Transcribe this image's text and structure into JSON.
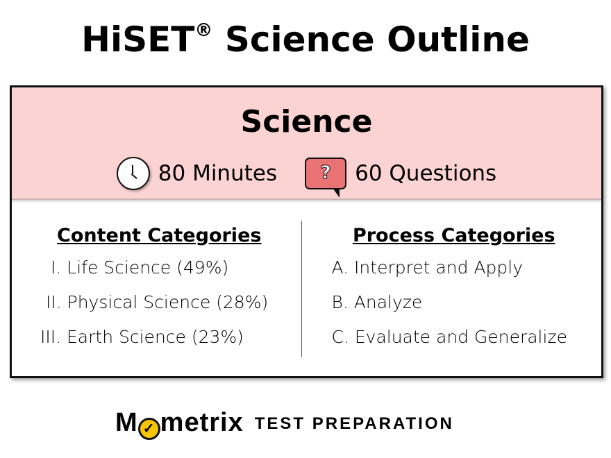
{
  "title": "HiSET",
  "title_mark": "®",
  "title_rest": "Science Outline",
  "subject": "Science",
  "time": {
    "icon": "clock-icon",
    "label": "80 Minutes"
  },
  "questions": {
    "icon": "question-bubble-icon",
    "symbol": "?",
    "label": "60 Questions"
  },
  "content": {
    "heading": "Content Categories",
    "items": [
      "I. Life Science (49%)",
      "II. Physical Science (28%)",
      "III. Earth Science (23%)"
    ]
  },
  "process": {
    "heading": "Process Categories",
    "items": [
      "A. Interpret and Apply",
      "B. Analyze",
      "C. Evaluate and Generalize"
    ]
  },
  "logo": {
    "brand": "Mometrix",
    "tagline": "TEST  PREPARATION"
  },
  "colors": {
    "header_bg": "#fcd3d3",
    "bubble": "#e87274",
    "logo_accent": "#f6c400"
  }
}
